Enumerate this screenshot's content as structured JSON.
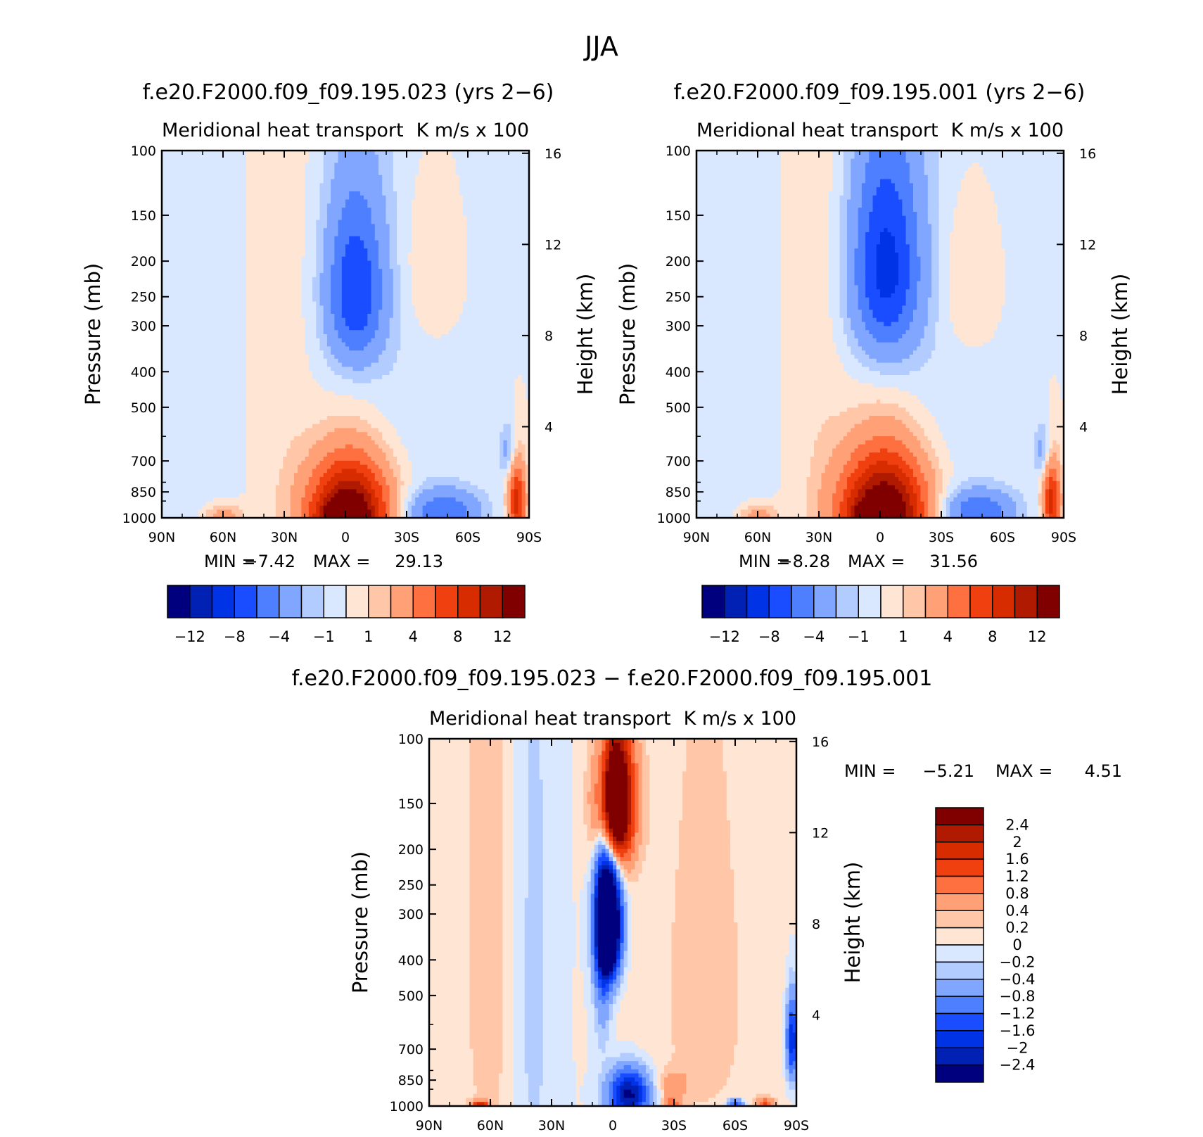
{
  "figure_title": "JJA",
  "colors": {
    "axis": "#000000",
    "absolute_palette": [
      "#00007f",
      "#0021b3",
      "#0033e6",
      "#1a4dff",
      "#4d7fff",
      "#80a6ff",
      "#b3ccff",
      "#d9e8ff",
      "#ffe5d4",
      "#ffc7a8",
      "#ffa077",
      "#ff7040",
      "#f04010",
      "#d62c00",
      "#b01a00",
      "#800000"
    ],
    "diff_palette": [
      "#00007f",
      "#0021b3",
      "#0033e6",
      "#1a4dff",
      "#4d7fff",
      "#80a6ff",
      "#b3ccff",
      "#d9e8ff",
      "#ffe5d4",
      "#ffc7a8",
      "#ffa077",
      "#ff7040",
      "#f04010",
      "#d62c00",
      "#b01a00",
      "#800000"
    ]
  },
  "chart_data": [
    {
      "type": "heatmap",
      "id": "panel1",
      "title": "f.e20.F2000.f09_f09.195.023 (yrs 2−6)",
      "subtitle_left": "Meridional heat transport",
      "subtitle_right": "K m/s x 100",
      "xlabel": "",
      "ylabel": "Pressure (mb)",
      "y2label": "Height (km)",
      "x_ticks": [
        "90N",
        "60N",
        "30N",
        "0",
        "30S",
        "60S",
        "90S"
      ],
      "x_range": [
        90,
        -90
      ],
      "y_ticks": [
        100,
        150,
        200,
        250,
        300,
        400,
        500,
        700,
        850,
        1000
      ],
      "y_range": [
        100,
        1000
      ],
      "y2_ticks": [
        16,
        12,
        8,
        4
      ],
      "min_label": "MIN =",
      "min": "−7.42",
      "max_label": "MAX =",
      "max": "29.13",
      "colorbar_labels": [
        "−12",
        "−8",
        "−4",
        "−1",
        "1",
        "4",
        "8",
        "12"
      ],
      "features": [
        {
          "lat": -5,
          "p": 240,
          "sx": 10,
          "sp": 90,
          "amp": -7.4
        },
        {
          "lat": -48,
          "p": 960,
          "sx": 13,
          "sp": 90,
          "amp": -5.5
        },
        {
          "lat": -2,
          "p": 960,
          "sx": 14,
          "sp": 210,
          "amp": 15
        },
        {
          "lat": 2,
          "p": 1000,
          "sx": 7,
          "sp": 60,
          "amp": 8
        },
        {
          "lat": -42,
          "p": 210,
          "sx": 10,
          "sp": 80,
          "amp": 1.5
        },
        {
          "lat": 60,
          "p": 980,
          "sx": 7,
          "sp": 50,
          "amp": 3
        },
        {
          "lat": -84,
          "p": 900,
          "sx": 3,
          "sp": 160,
          "amp": 9
        },
        {
          "lat": -80,
          "p": 660,
          "sx": 3,
          "sp": 80,
          "amp": -3
        },
        {
          "lat": 72,
          "p": 300,
          "sx": 12,
          "sp": 900,
          "amp": -0.8
        },
        {
          "lat": 30,
          "p": 300,
          "sx": 10,
          "sp": 900,
          "amp": 0.8
        },
        {
          "lat": -20,
          "p": 500,
          "sx": 30,
          "sp": 600,
          "amp": -0.8
        }
      ]
    },
    {
      "type": "heatmap",
      "id": "panel2",
      "title": "f.e20.F2000.f09_f09.195.001 (yrs 2−6)",
      "subtitle_left": "Meridional heat transport",
      "subtitle_right": "K m/s x 100",
      "xlabel": "",
      "ylabel": "Pressure (mb)",
      "y2label": "Height (km)",
      "x_ticks": [
        "90N",
        "60N",
        "30N",
        "0",
        "30S",
        "60S",
        "90S"
      ],
      "x_range": [
        90,
        -90
      ],
      "y_ticks": [
        100,
        150,
        200,
        250,
        300,
        400,
        500,
        700,
        850,
        1000
      ],
      "y_range": [
        100,
        1000
      ],
      "y2_ticks": [
        16,
        12,
        8,
        4
      ],
      "min_label": "MIN =",
      "min": "−8.28",
      "max_label": "MAX =",
      "max": "31.56",
      "colorbar_labels": [
        "−12",
        "−8",
        "−4",
        "−1",
        "1",
        "4",
        "8",
        "12"
      ],
      "features": [
        {
          "lat": -3,
          "p": 210,
          "sx": 12,
          "sp": 100,
          "amp": -8.3
        },
        {
          "lat": -48,
          "p": 960,
          "sx": 13,
          "sp": 90,
          "amp": -5.5
        },
        {
          "lat": -2,
          "p": 960,
          "sx": 15,
          "sp": 230,
          "amp": 16
        },
        {
          "lat": 2,
          "p": 1000,
          "sx": 7,
          "sp": 60,
          "amp": 9
        },
        {
          "lat": -43,
          "p": 230,
          "sx": 10,
          "sp": 80,
          "amp": 1.5
        },
        {
          "lat": 60,
          "p": 980,
          "sx": 7,
          "sp": 50,
          "amp": 3
        },
        {
          "lat": -84,
          "p": 900,
          "sx": 3,
          "sp": 160,
          "amp": 9
        },
        {
          "lat": -80,
          "p": 660,
          "sx": 3,
          "sp": 80,
          "amp": -3
        },
        {
          "lat": 72,
          "p": 300,
          "sx": 12,
          "sp": 900,
          "amp": -0.8
        },
        {
          "lat": 30,
          "p": 300,
          "sx": 10,
          "sp": 900,
          "amp": 0.8
        },
        {
          "lat": -20,
          "p": 500,
          "sx": 30,
          "sp": 600,
          "amp": -0.8
        }
      ]
    },
    {
      "type": "heatmap",
      "id": "panel3",
      "title": "f.e20.F2000.f09_f09.195.023 − f.e20.F2000.f09_f09.195.001",
      "subtitle_left": "Meridional heat transport",
      "subtitle_right": "K m/s x 100",
      "xlabel": "",
      "ylabel": "Pressure (mb)",
      "y2label": "Height (km)",
      "x_ticks": [
        "90N",
        "60N",
        "30N",
        "0",
        "30S",
        "60S",
        "90S"
      ],
      "x_range": [
        90,
        -90
      ],
      "y_ticks": [
        100,
        150,
        200,
        250,
        300,
        400,
        500,
        700,
        850,
        1000
      ],
      "y_range": [
        100,
        1000
      ],
      "y2_ticks": [
        16,
        12,
        8,
        4
      ],
      "min_label": "MIN =",
      "min": "−5.21",
      "max_label": "MAX =",
      "max": "4.51",
      "colorbar_labels": [
        "2.4",
        "2",
        "1.6",
        "1.2",
        "0.8",
        "0.4",
        "0.2",
        "0",
        "−0.2",
        "−0.4",
        "−0.8",
        "−1.2",
        "−1.6",
        "−2",
        "−2.4"
      ],
      "features": [
        {
          "lat": -1,
          "p": 150,
          "sx": 6,
          "sp": 45,
          "amp": 4.5
        },
        {
          "lat": 2,
          "p": 320,
          "sx": 4,
          "sp": 80,
          "amp": -5.2
        },
        {
          "lat": 5,
          "p": 330,
          "sx": 3,
          "sp": 200,
          "amp": -1.2
        },
        {
          "lat": -8,
          "p": 930,
          "sx": 7,
          "sp": 100,
          "amp": -2.6
        },
        {
          "lat": -29,
          "p": 990,
          "sx": 3,
          "sp": 40,
          "amp": 0.9
        },
        {
          "lat": 65,
          "p": 1000,
          "sx": 3,
          "sp": 25,
          "amp": 1.8
        },
        {
          "lat": -75,
          "p": 985,
          "sx": 3,
          "sp": 25,
          "amp": 1.2
        },
        {
          "lat": -60,
          "p": 990,
          "sx": 3,
          "sp": 25,
          "amp": -1.4
        },
        {
          "lat": -88,
          "p": 660,
          "sx": 2,
          "sp": 120,
          "amp": -2
        },
        {
          "lat": 60,
          "p": 350,
          "sx": 10,
          "sp": 700,
          "amp": 0.35
        },
        {
          "lat": 40,
          "p": 500,
          "sx": 8,
          "sp": 700,
          "amp": -0.3
        },
        {
          "lat": -45,
          "p": 500,
          "sx": 25,
          "sp": 700,
          "amp": 0.25
        },
        {
          "lat": -30,
          "p": 870,
          "sx": 5,
          "sp": 50,
          "amp": 0.5
        }
      ]
    }
  ]
}
